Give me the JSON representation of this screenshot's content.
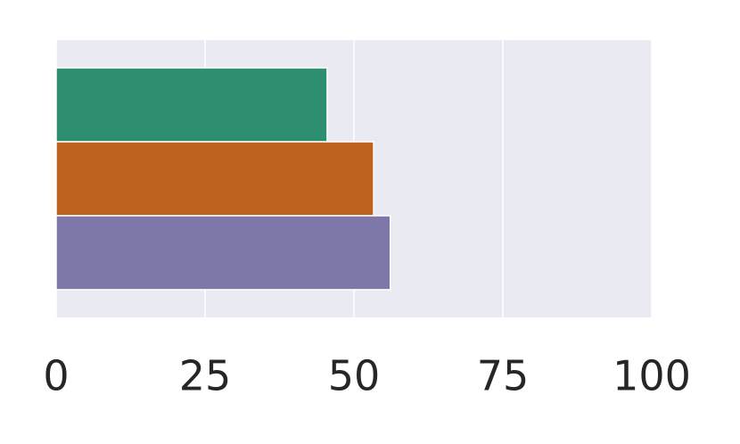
{
  "chart_data": {
    "type": "barh",
    "categories": [
      null
    ],
    "series": [
      {
        "color": "#2e8e70",
        "values": [
          45.5
        ]
      },
      {
        "color": "#bd621f",
        "values": [
          53.3
        ]
      },
      {
        "color": "#7d77aa",
        "values": [
          56.1
        ]
      }
    ],
    "xlim": [
      0,
      100
    ],
    "xticks": [
      0,
      25,
      50,
      75,
      100
    ],
    "grid": true
  }
}
